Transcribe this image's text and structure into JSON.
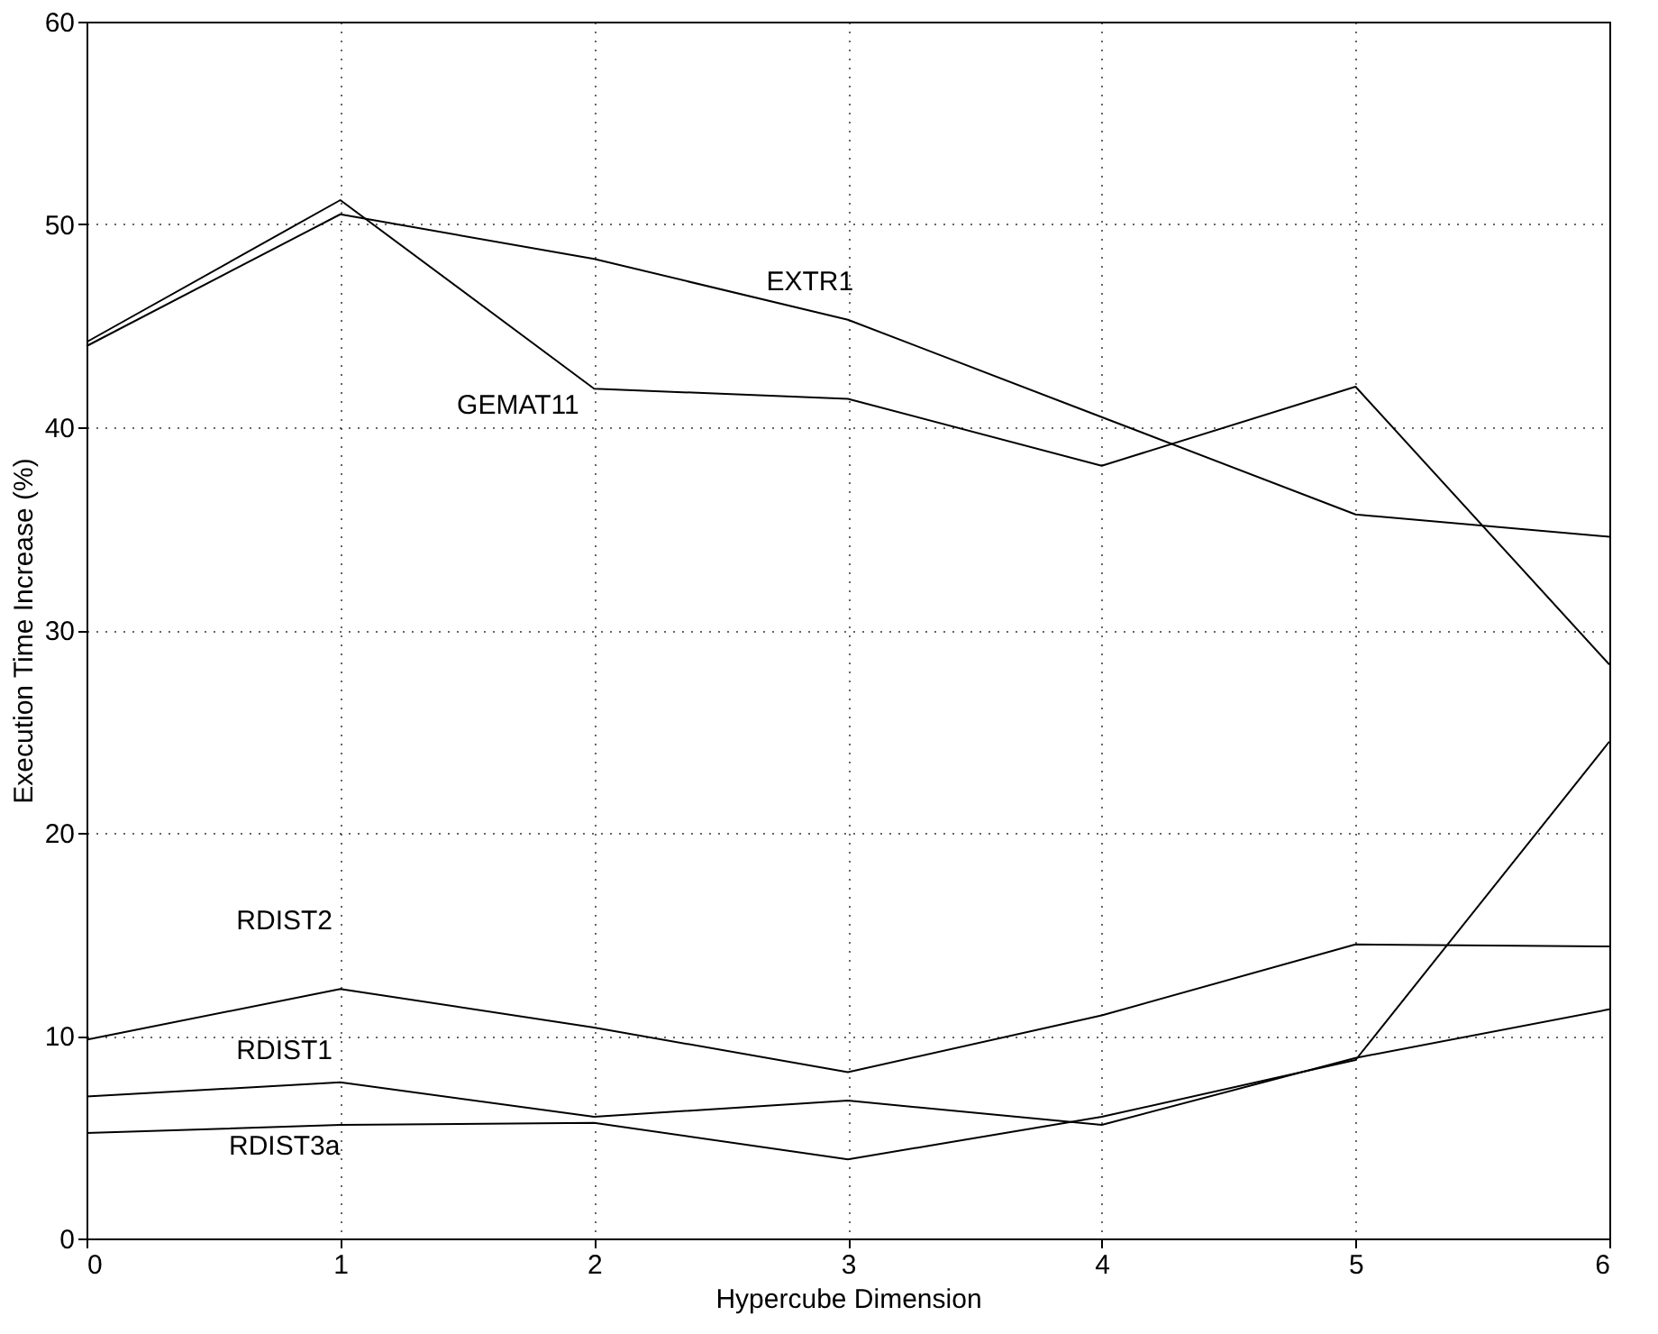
{
  "chart_data": {
    "type": "line",
    "xlabel": "Hypercube Dimension",
    "ylabel": "Execution Time Increase (%)",
    "x": [
      0,
      1,
      2,
      3,
      4,
      5,
      6
    ],
    "series": [
      {
        "name": "EXTR1",
        "color": "#000000",
        "values": [
          44.0,
          50.5,
          48.3,
          45.3,
          40.5,
          35.7,
          34.6
        ]
      },
      {
        "name": "GEMAT11",
        "color": "#000000",
        "values": [
          44.2,
          51.2,
          41.9,
          41.4,
          38.1,
          42.0,
          28.3
        ]
      },
      {
        "name": "RDIST2",
        "color": "#000000",
        "values": [
          9.8,
          12.3,
          10.4,
          8.2,
          11.0,
          14.5,
          14.4
        ]
      },
      {
        "name": "RDIST1",
        "color": "#000000",
        "values": [
          7.0,
          7.7,
          6.0,
          6.8,
          5.6,
          8.9,
          11.3
        ]
      },
      {
        "name": "RDIST3a",
        "color": "#000000",
        "values": [
          5.2,
          5.6,
          5.7,
          3.9,
          6.0,
          8.8,
          24.5
        ]
      }
    ],
    "xlim": [
      0,
      6
    ],
    "ylim": [
      0,
      60
    ],
    "xticks": [
      0,
      1,
      2,
      3,
      4,
      5,
      6
    ],
    "yticks": [
      0,
      10,
      20,
      30,
      40,
      50,
      60
    ],
    "grid": true,
    "marker": "none",
    "line_style": "solid",
    "legend": false
  }
}
